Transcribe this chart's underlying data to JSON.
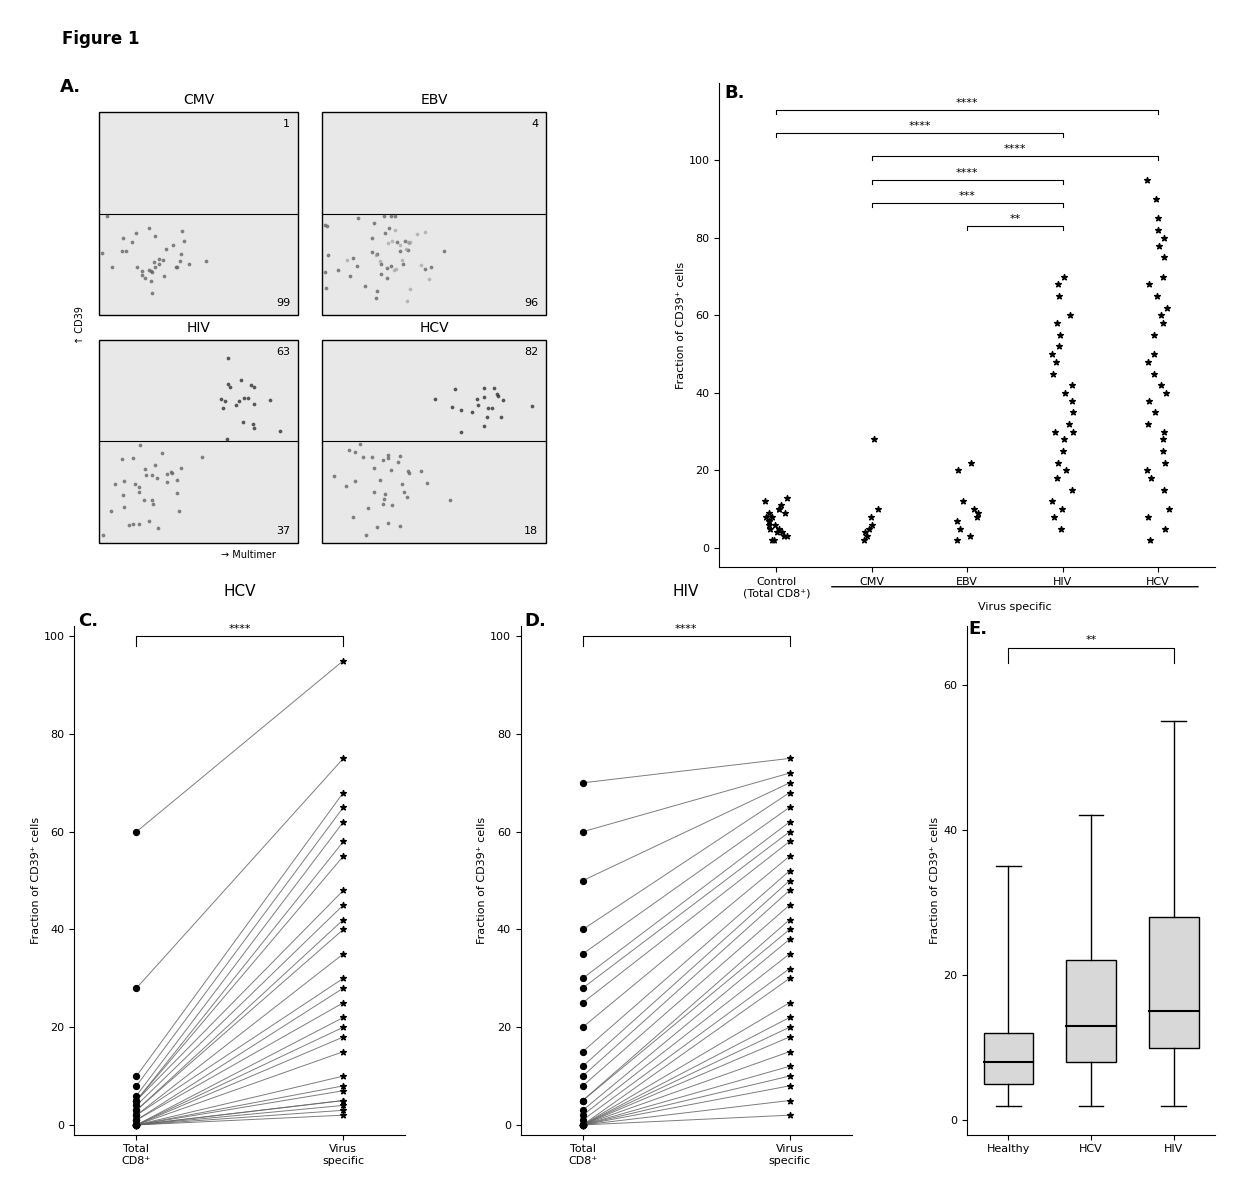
{
  "figure_title": "Figure 1",
  "panel_B": {
    "ylabel": "Fraction of CD39⁺ cells",
    "ylim": [
      0,
      100
    ],
    "categories": [
      "Control\n(Total CD8⁺)",
      "CMV",
      "EBV",
      "HIV",
      "HCV"
    ],
    "xlabel_virus": "Virus specific",
    "control_data": [
      2,
      3,
      4,
      5,
      6,
      7,
      8,
      9,
      10,
      11,
      12,
      13,
      3,
      5,
      7,
      9,
      2,
      4,
      6,
      8,
      10
    ],
    "cmv_data": [
      2,
      3,
      5,
      8,
      10,
      4,
      6,
      28
    ],
    "ebv_data": [
      2,
      3,
      5,
      7,
      8,
      9,
      10,
      12,
      20,
      22
    ],
    "hiv_data": [
      5,
      8,
      10,
      12,
      15,
      18,
      20,
      22,
      25,
      28,
      30,
      30,
      32,
      35,
      38,
      40,
      42,
      45,
      48,
      50,
      52,
      55,
      58,
      60,
      65,
      68,
      70
    ],
    "hcv_data": [
      2,
      5,
      8,
      10,
      15,
      18,
      20,
      22,
      25,
      28,
      30,
      32,
      35,
      38,
      40,
      42,
      45,
      48,
      50,
      55,
      58,
      60,
      62,
      65,
      68,
      70,
      75,
      78,
      80,
      82,
      85,
      90,
      95
    ],
    "sig_bars": [
      [
        0,
        4,
        113,
        "****"
      ],
      [
        0,
        3,
        107,
        "****"
      ],
      [
        1,
        4,
        101,
        "****"
      ],
      [
        1,
        3,
        95,
        "****"
      ],
      [
        1,
        3,
        89,
        "***"
      ],
      [
        2,
        3,
        83,
        "**"
      ]
    ]
  },
  "panel_C": {
    "title": "HCV",
    "ylabel": "Fraction of CD39⁺ cells",
    "ylim": [
      0,
      100
    ],
    "x_labels": [
      "Total\nCD8⁺",
      "Virus\nspecific"
    ],
    "sig": "****",
    "total_cd8": [
      0,
      0,
      0,
      0,
      0,
      0,
      0,
      0,
      0,
      0,
      0,
      0,
      1,
      1,
      2,
      2,
      3,
      3,
      4,
      5,
      5,
      5,
      6,
      8,
      10,
      28,
      60
    ],
    "virus_specific": [
      2,
      3,
      4,
      5,
      5,
      7,
      8,
      10,
      15,
      18,
      20,
      22,
      25,
      28,
      30,
      35,
      40,
      42,
      45,
      48,
      55,
      58,
      62,
      65,
      68,
      75,
      95
    ]
  },
  "panel_D": {
    "title": "HIV",
    "ylabel": "Fraction of CD39⁺ cells",
    "ylim": [
      0,
      100
    ],
    "x_labels": [
      "Total\nCD8⁺",
      "Virus\nspecific"
    ],
    "sig": "****",
    "total_cd8": [
      0,
      0,
      0,
      0,
      0,
      0,
      0,
      0,
      0,
      0,
      0,
      1,
      2,
      3,
      5,
      5,
      8,
      10,
      12,
      15,
      20,
      25,
      28,
      30,
      35,
      40,
      50,
      60,
      70
    ],
    "virus_specific": [
      2,
      5,
      8,
      10,
      12,
      15,
      18,
      20,
      22,
      25,
      30,
      32,
      35,
      38,
      40,
      42,
      45,
      48,
      50,
      52,
      55,
      58,
      60,
      62,
      65,
      68,
      70,
      72,
      75
    ]
  },
  "panel_E": {
    "ylabel": "Fraction of CD39⁺ cells",
    "ylim": [
      0,
      60
    ],
    "categories": [
      "Healthy",
      "HCV",
      "HIV"
    ],
    "sig": "**",
    "healthy_box": {
      "q1": 5,
      "median": 8,
      "q3": 12,
      "whisker_low": 2,
      "whisker_high": 35
    },
    "hcv_box": {
      "q1": 8,
      "median": 13,
      "q3": 22,
      "whisker_low": 2,
      "whisker_high": 42
    },
    "hiv_box": {
      "q1": 10,
      "median": 15,
      "q3": 28,
      "whisker_low": 2,
      "whisker_high": 55
    }
  },
  "colors": {
    "dots": "#000000",
    "lines": "#555555",
    "box_fill": "#d8d8d8",
    "sig_line": "#000000"
  }
}
